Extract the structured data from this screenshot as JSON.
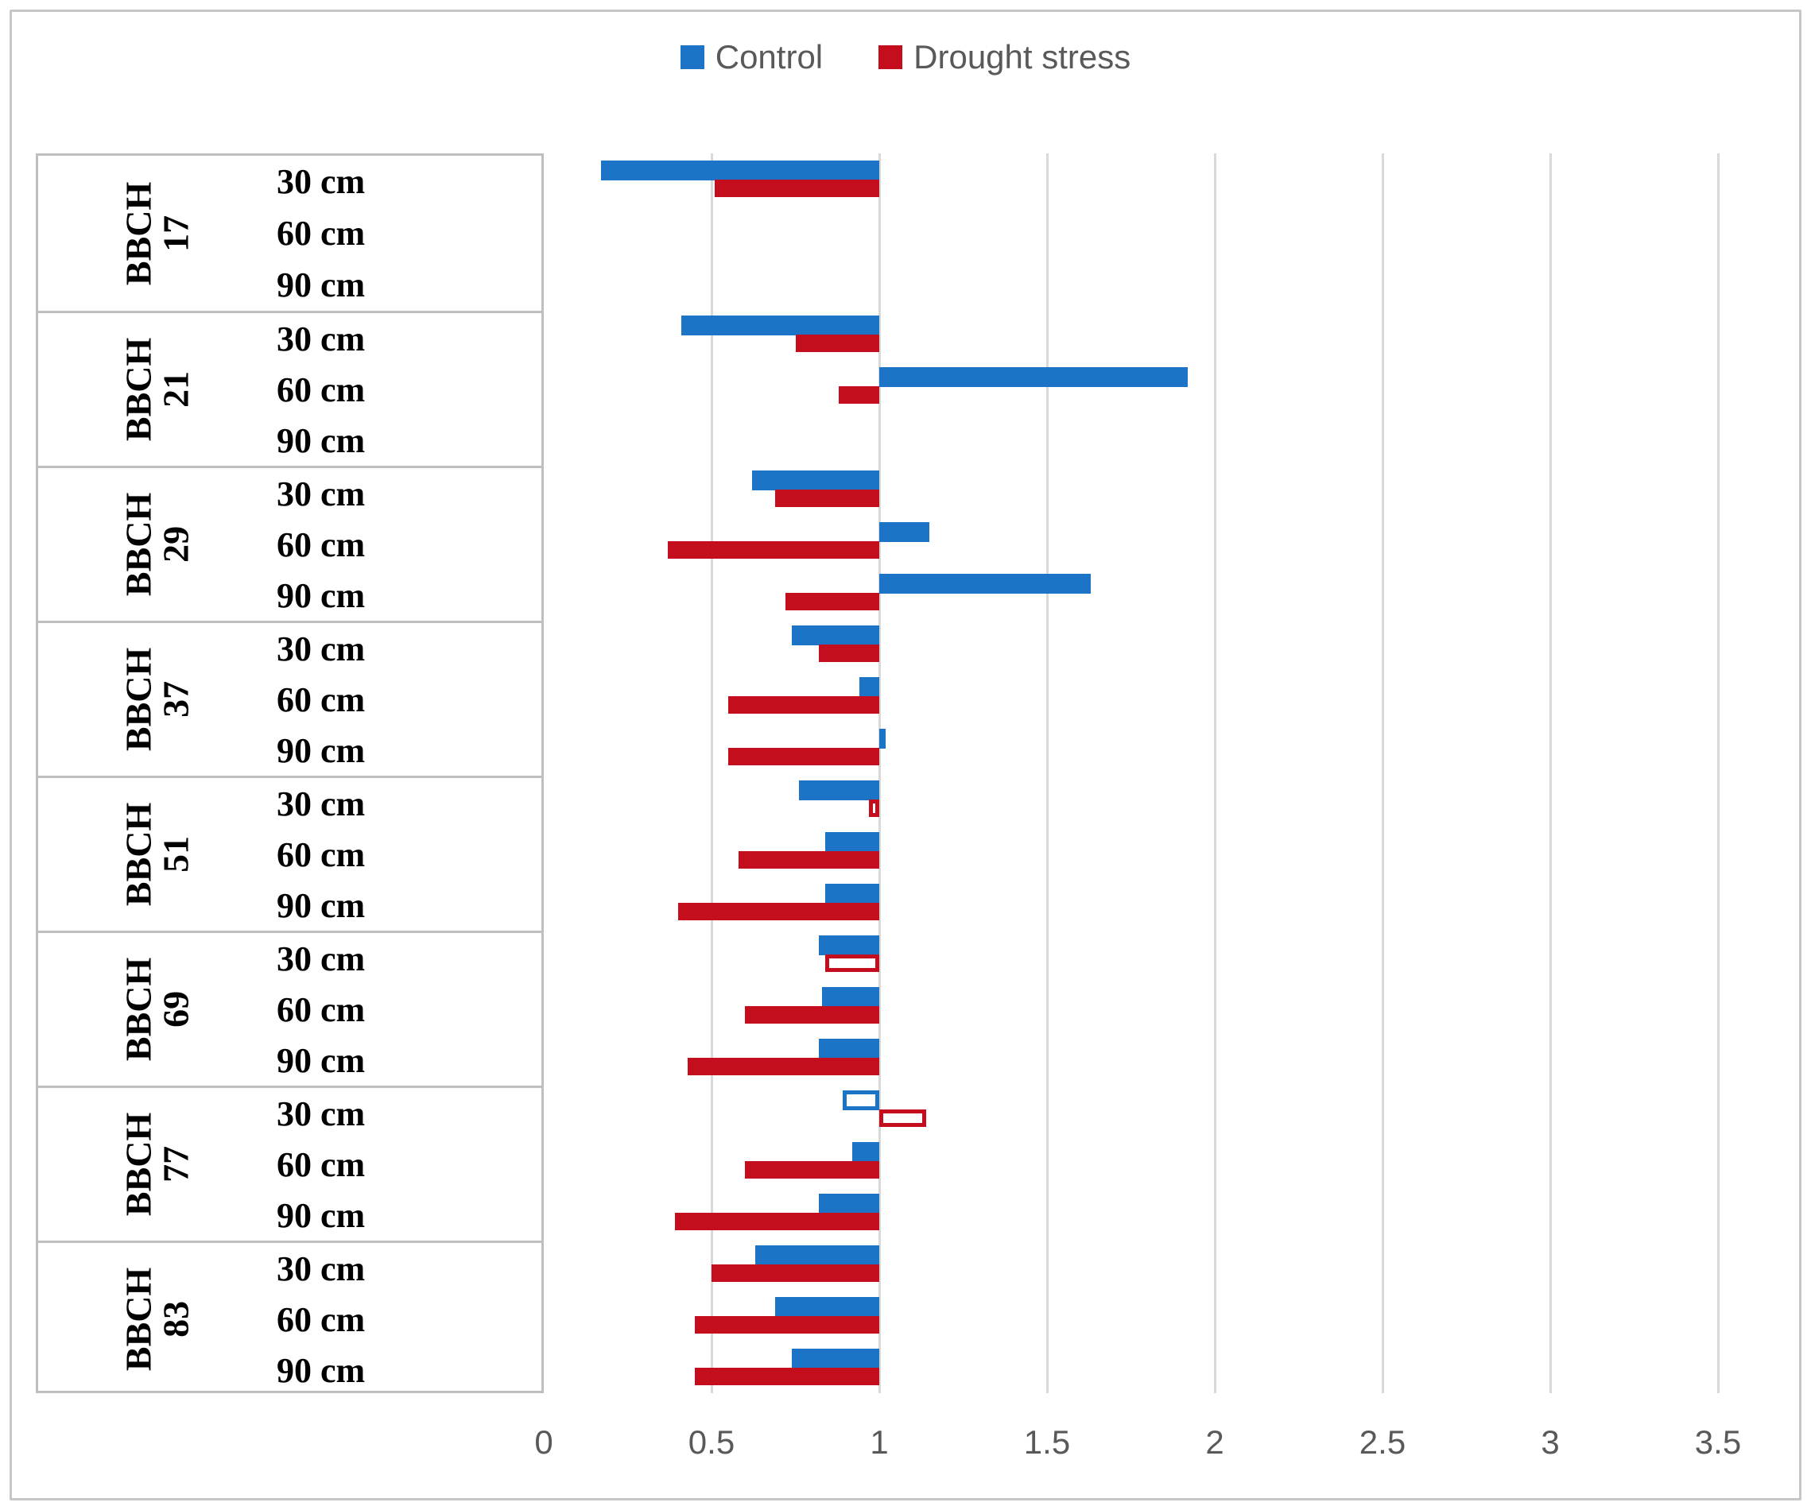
{
  "chart_data": {
    "type": "bar",
    "orientation": "horizontal",
    "base_value": 1.0,
    "title": "",
    "xlabel": "",
    "ylabel": "",
    "x_axis": {
      "min": 0,
      "max": 3.5,
      "tick_step": 0.5,
      "tick_labels": [
        "0",
        "0.5",
        "1",
        "1.5",
        "2",
        "2.5",
        "3",
        "3.5"
      ],
      "grid": true
    },
    "legend": {
      "position": "top-center",
      "items": [
        {
          "label": "Control",
          "color": "#1b74c5"
        },
        {
          "label": "Drought stress",
          "color": "#c40e1e"
        }
      ]
    },
    "colors": {
      "control": "#1b74c5",
      "drought": "#c40e1e",
      "gridline": "#d9d9d9",
      "table_border": "#bfbfbf",
      "axis_text": "#595959"
    },
    "groups": [
      {
        "label": "BBCH",
        "number": "17",
        "rows": [
          {
            "depth": "30 cm",
            "control": 0.17,
            "drought": 0.51,
            "control_hollow": false,
            "drought_hollow": false
          },
          {
            "depth": "60 cm",
            "control": null,
            "drought": null,
            "control_hollow": false,
            "drought_hollow": false
          },
          {
            "depth": "90 cm",
            "control": null,
            "drought": null,
            "control_hollow": false,
            "drought_hollow": false
          }
        ]
      },
      {
        "label": "BBCH",
        "number": "21",
        "rows": [
          {
            "depth": "30 cm",
            "control": 0.41,
            "drought": 0.75,
            "control_hollow": false,
            "drought_hollow": false
          },
          {
            "depth": "60 cm",
            "control": 1.92,
            "drought": 0.88,
            "control_hollow": false,
            "drought_hollow": false
          },
          {
            "depth": "90 cm",
            "control": null,
            "drought": null,
            "control_hollow": false,
            "drought_hollow": false
          }
        ]
      },
      {
        "label": "BBCH",
        "number": "29",
        "rows": [
          {
            "depth": "30 cm",
            "control": 0.62,
            "drought": 0.69,
            "control_hollow": false,
            "drought_hollow": false
          },
          {
            "depth": "60 cm",
            "control": 1.15,
            "drought": 0.37,
            "control_hollow": false,
            "drought_hollow": false
          },
          {
            "depth": "90 cm",
            "control": 1.63,
            "drought": 0.72,
            "control_hollow": false,
            "drought_hollow": false
          }
        ]
      },
      {
        "label": "BBCH",
        "number": "37",
        "rows": [
          {
            "depth": "30 cm",
            "control": 0.74,
            "drought": 0.82,
            "control_hollow": false,
            "drought_hollow": false
          },
          {
            "depth": "60 cm",
            "control": 0.94,
            "drought": 0.55,
            "control_hollow": false,
            "drought_hollow": false
          },
          {
            "depth": "90 cm",
            "control": 1.02,
            "drought": 0.55,
            "control_hollow": false,
            "drought_hollow": false
          }
        ]
      },
      {
        "label": "BBCH",
        "number": "51",
        "rows": [
          {
            "depth": "30 cm",
            "control": 0.76,
            "drought": 0.97,
            "control_hollow": false,
            "drought_hollow": true
          },
          {
            "depth": "60 cm",
            "control": 0.84,
            "drought": 0.58,
            "control_hollow": false,
            "drought_hollow": false
          },
          {
            "depth": "90 cm",
            "control": 0.84,
            "drought": 0.4,
            "control_hollow": false,
            "drought_hollow": false
          }
        ]
      },
      {
        "label": "BBCH",
        "number": "69",
        "rows": [
          {
            "depth": "30 cm",
            "control": 0.82,
            "drought": 0.84,
            "control_hollow": false,
            "drought_hollow": true
          },
          {
            "depth": "60 cm",
            "control": 0.83,
            "drought": 0.6,
            "control_hollow": false,
            "drought_hollow": false
          },
          {
            "depth": "90 cm",
            "control": 0.82,
            "drought": 0.43,
            "control_hollow": false,
            "drought_hollow": false
          }
        ]
      },
      {
        "label": "BBCH",
        "number": "77",
        "rows": [
          {
            "depth": "30 cm",
            "control": 0.89,
            "drought": 1.14,
            "control_hollow": true,
            "drought_hollow": true
          },
          {
            "depth": "60 cm",
            "control": 0.92,
            "drought": 0.6,
            "control_hollow": false,
            "drought_hollow": false
          },
          {
            "depth": "90 cm",
            "control": 0.82,
            "drought": 0.39,
            "control_hollow": false,
            "drought_hollow": false
          }
        ]
      },
      {
        "label": "BBCH",
        "number": "83",
        "rows": [
          {
            "depth": "30 cm",
            "control": 0.63,
            "drought": 0.5,
            "control_hollow": false,
            "drought_hollow": false
          },
          {
            "depth": "60 cm",
            "control": 0.69,
            "drought": 0.45,
            "control_hollow": false,
            "drought_hollow": false
          },
          {
            "depth": "90 cm",
            "control": 0.74,
            "drought": 0.45,
            "control_hollow": false,
            "drought_hollow": false
          }
        ]
      }
    ]
  }
}
